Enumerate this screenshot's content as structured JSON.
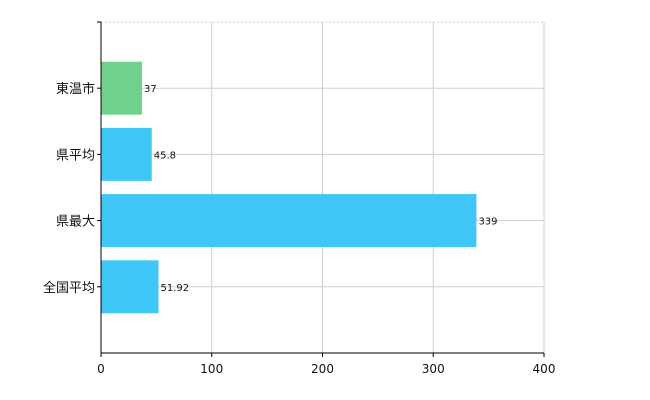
{
  "chart_data": {
    "type": "bar",
    "orientation": "horizontal",
    "categories": [
      "東温市",
      "県平均",
      "県最大",
      "全国平均"
    ],
    "values": [
      37,
      45.8,
      339,
      51.92
    ],
    "data_labels": [
      "37",
      "45.8",
      "339",
      "51.92"
    ],
    "bar_colors": [
      "#6fd18b",
      "#40c6f7",
      "#40c6f7",
      "#40c6f7"
    ],
    "xlim": [
      0,
      400
    ],
    "xticks": [
      0,
      100,
      200,
      300,
      400
    ],
    "xtick_labels": [
      "0",
      "100",
      "200",
      "300",
      "400"
    ],
    "grid": true,
    "legend": false
  }
}
